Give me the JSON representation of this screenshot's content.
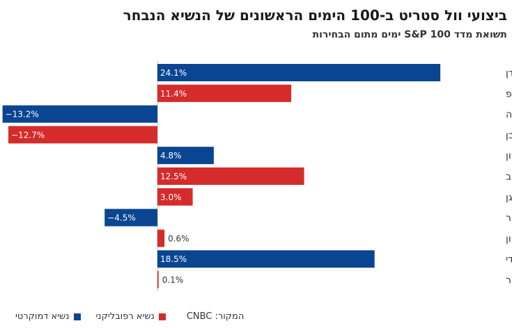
{
  "title": "ביצועי וול סטריט ב-100 הימים הראשונים של הנשיא הנבחר",
  "subtitle": "תשואת מדד S&P 100 ימים מתום הבחירות",
  "legend": {
    "democrat": "נשיא דמוקרטי",
    "republican": "נשיא רפובליקני"
  },
  "source": "המקור: CNBC",
  "colors": {
    "democrat": "#0a4592",
    "republican": "#d52b2b",
    "axis": "#bbbbbb"
  },
  "chart_data": {
    "type": "bar",
    "orientation": "horizontal",
    "categories": [
      "ביידן",
      "טראמפ",
      "אובמה",
      "בוש הבן",
      "קלינטון",
      "בוש האב",
      "רייגן",
      "קרטר",
      "ניקסון",
      "קנדי",
      "אייזנהאואר"
    ],
    "values": [
      24.1,
      11.4,
      -13.2,
      -12.7,
      4.8,
      12.5,
      3.0,
      -4.5,
      0.6,
      18.5,
      0.1
    ],
    "labels": [
      "24.1%",
      "11.4%",
      "−13.2%",
      "−12.7%",
      "4.8%",
      "12.5%",
      "3.0%",
      "−4.5%",
      "0.6%",
      "18.5%",
      "0.1%"
    ],
    "party": [
      "democrat",
      "republican",
      "democrat",
      "republican",
      "democrat",
      "republican",
      "republican",
      "democrat",
      "republican",
      "democrat",
      "republican"
    ],
    "xlim": [
      -14,
      25
    ]
  }
}
